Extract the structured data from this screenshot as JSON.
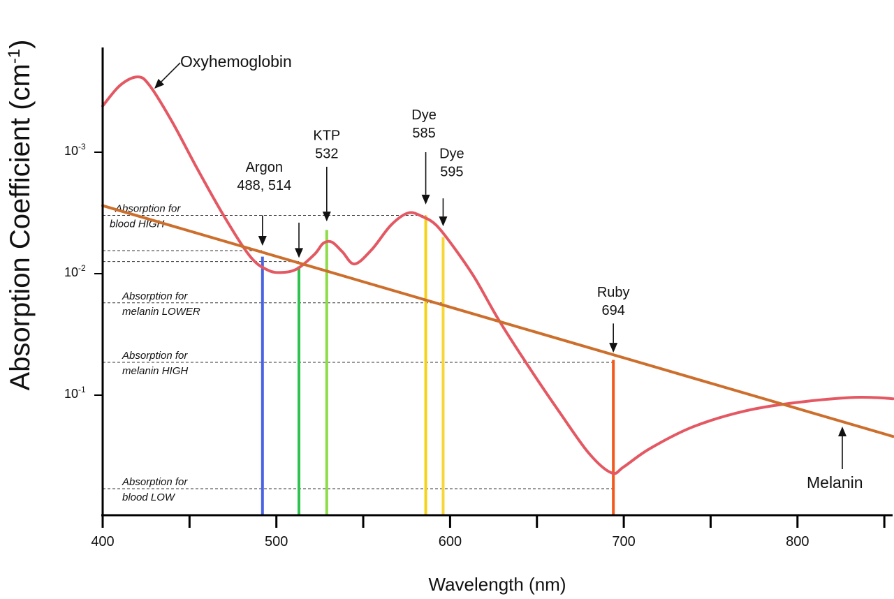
{
  "chart_data": {
    "type": "line",
    "title": "",
    "xlabel": "Wavelength (nm)",
    "ylabel": {
      "base": "Absorption Coefficient (cm",
      "superscript": "-1",
      "close": ")"
    },
    "xlim": [
      400,
      855
    ],
    "x_ticks": [
      {
        "value": 400,
        "label": "400"
      },
      {
        "value": 450,
        "label": ""
      },
      {
        "value": 500,
        "label": "500"
      },
      {
        "value": 550,
        "label": ""
      },
      {
        "value": 600,
        "label": "600"
      },
      {
        "value": 650,
        "label": ""
      },
      {
        "value": 700,
        "label": "700"
      },
      {
        "value": 750,
        "label": ""
      },
      {
        "value": 800,
        "label": "800"
      },
      {
        "value": 850,
        "label": ""
      }
    ],
    "y_ticks": [
      {
        "level": 0.0,
        "base": "10",
        "exponent": "-3"
      },
      {
        "level": 1.0,
        "base": "10",
        "exponent": "-2"
      },
      {
        "level": 2.0,
        "base": "10",
        "exponent": "-1"
      }
    ],
    "y_axis_note": "level = decades below 10^-3 (axis inverted: lower on chart means higher level number)",
    "series": [
      {
        "name": "Oxyhemoglobin",
        "label": "Oxyhemoglobin",
        "color": "#e35862",
        "x": [
          400,
          410,
          420,
          427,
          440,
          455,
          470,
          485,
          495,
          503,
          512,
          522,
          527,
          532,
          538,
          545,
          555,
          566,
          576,
          584,
          592,
          602,
          614,
          628,
          645,
          663,
          680,
          693,
          700,
          715,
          740,
          770,
          800,
          830,
          845,
          855
        ],
        "y": [
          -0.38,
          -0.55,
          -0.62,
          -0.55,
          -0.25,
          0.15,
          0.53,
          0.86,
          0.97,
          0.99,
          0.96,
          0.84,
          0.75,
          0.74,
          0.82,
          0.92,
          0.8,
          0.6,
          0.5,
          0.53,
          0.6,
          0.78,
          1.03,
          1.38,
          1.76,
          2.14,
          2.48,
          2.64,
          2.59,
          2.44,
          2.26,
          2.13,
          2.06,
          2.02,
          2.02,
          2.03
        ]
      },
      {
        "name": "Melanin",
        "label": "Melanin",
        "color": "#cc6e2c",
        "x": [
          400,
          855
        ],
        "y": [
          0.44,
          2.34
        ]
      }
    ],
    "lasers": [
      {
        "name": "Argon 488",
        "wavelength": 492,
        "color": "#4a63e0",
        "top_level": 0.86
      },
      {
        "name": "Argon 514",
        "wavelength": 513,
        "color": "#2fc24e",
        "top_level": 0.94
      },
      {
        "name": "KTP 532",
        "wavelength": 529,
        "color": "#8fdc4a",
        "top_level": 0.64
      },
      {
        "name": "Dye 585",
        "wavelength": 586,
        "color": "#f5d21a",
        "top_level": 0.52
      },
      {
        "name": "Dye 595",
        "wavelength": 596,
        "color": "#f7d638",
        "top_level": 0.7
      },
      {
        "name": "Ruby 694",
        "wavelength": 694,
        "color": "#f05a1e",
        "top_level": 1.71
      }
    ],
    "laser_labels": [
      {
        "lines": [
          "Argon",
          "488, 514"
        ],
        "x": 493,
        "level": 0.16
      },
      {
        "lines": [
          "KTP",
          "532"
        ],
        "x": 529,
        "level": -0.1
      },
      {
        "lines": [
          "Dye",
          "585"
        ],
        "x": 585,
        "level": -0.27
      },
      {
        "lines": [
          "Dye",
          "595"
        ],
        "x": 601,
        "level": 0.05
      },
      {
        "lines": [
          "Ruby",
          "694"
        ],
        "x": 694,
        "level": 1.19
      }
    ],
    "reference_lines": [
      {
        "level": 0.52,
        "x_from": 400,
        "x_to": 586,
        "label": [
          "Absorption for",
          "blood HIGH"
        ]
      },
      {
        "level": 0.81,
        "x_from": 400,
        "x_to": 492,
        "label": []
      },
      {
        "level": 0.9,
        "x_from": 400,
        "x_to": 513,
        "label": []
      },
      {
        "level": 1.24,
        "x_from": 400,
        "x_to": 596,
        "label": [
          "Absorption for",
          "melanin LOWER"
        ]
      },
      {
        "level": 1.73,
        "x_from": 400,
        "x_to": 694,
        "label": [
          "Absorption for",
          "melanin HIGH"
        ]
      },
      {
        "level": 2.77,
        "x_from": 400,
        "x_to": 694,
        "label": [
          "Absorption for",
          "blood LOW"
        ]
      }
    ],
    "annotations": [
      {
        "text": "Oxyhemoglobin",
        "target": "Oxyhemoglobin"
      },
      {
        "text": "Melanin",
        "target": "Melanin"
      }
    ]
  }
}
